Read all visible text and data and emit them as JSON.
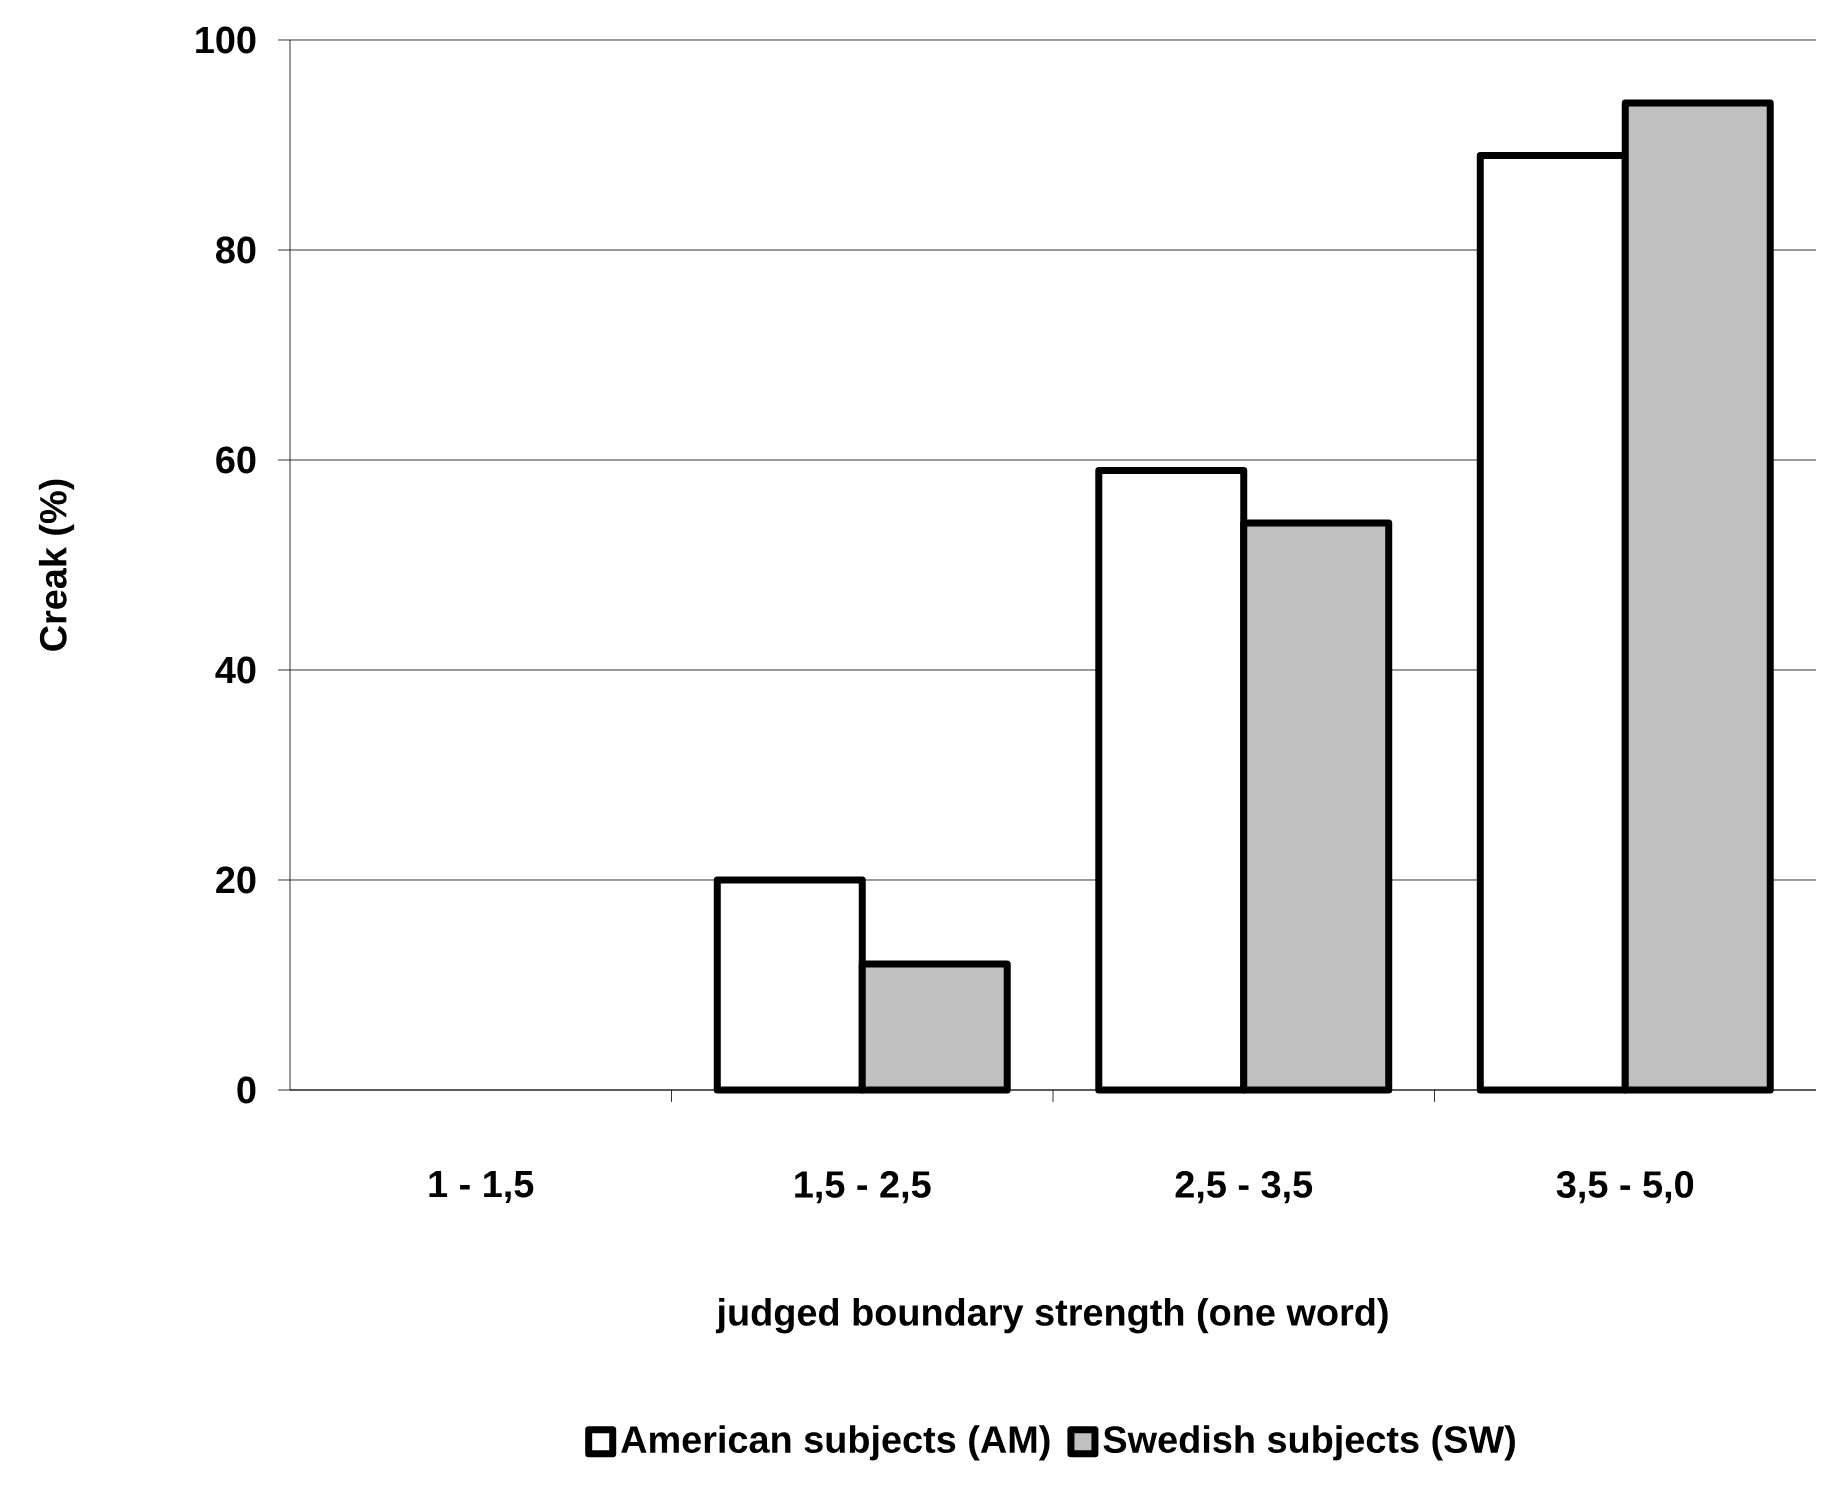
{
  "chart_data": {
    "type": "bar",
    "xlabel": "judged boundary strength (one word)",
    "ylabel": "Creak (%)",
    "categories": [
      "1 - 1,5",
      "1,5 - 2,5",
      "2,5 - 3,5",
      "3,5 - 5,0"
    ],
    "series": [
      {
        "name": "American subjects (AM)",
        "color": "#ffffff",
        "values": [
          null,
          20,
          59,
          89
        ]
      },
      {
        "name": "Swedish subjects (SW)",
        "color": "#c0c0c0",
        "values": [
          null,
          12,
          54,
          94
        ]
      }
    ],
    "ylim": [
      0,
      100
    ],
    "yticks": [
      0,
      20,
      40,
      60,
      80,
      100
    ],
    "grid": "y",
    "legend": "bottom"
  }
}
